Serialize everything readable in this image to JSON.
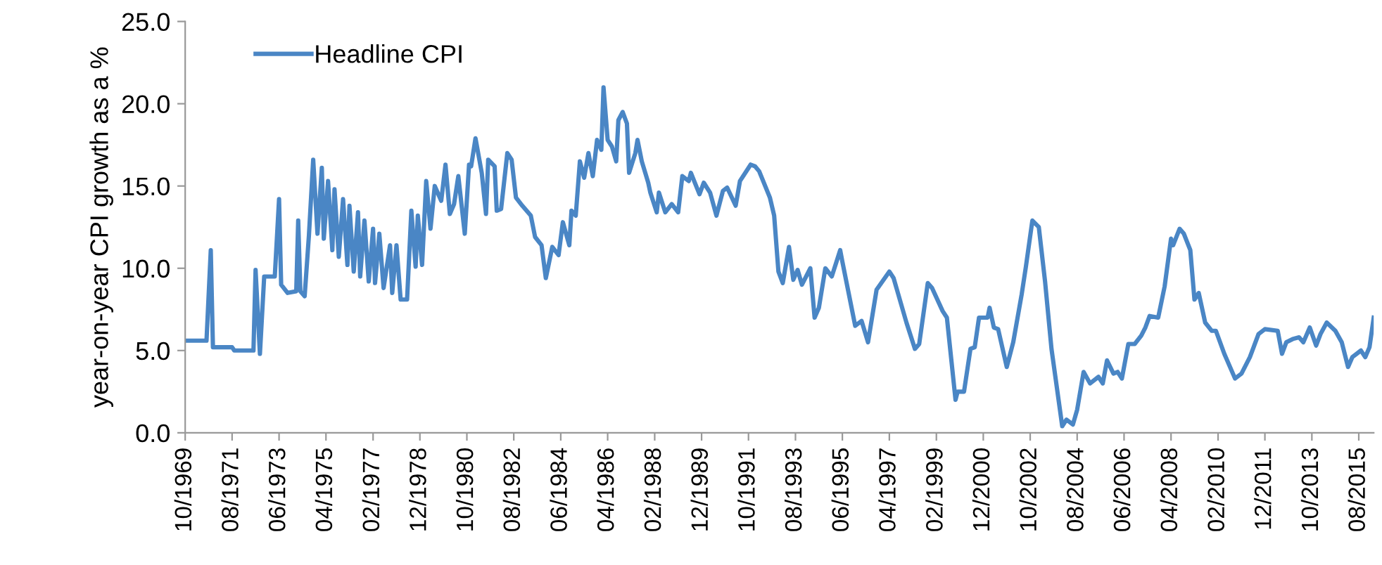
{
  "chart_data": {
    "type": "line",
    "ylabel": "year-on-year CPI growth as a %",
    "xlim": [
      "1969-10",
      "2016-03"
    ],
    "xticks": [
      {
        "value": "1969-10",
        "label": "10/1969"
      },
      {
        "value": "1971-08",
        "label": "08/1971"
      },
      {
        "value": "1973-06",
        "label": "06/1973"
      },
      {
        "value": "1975-04",
        "label": "04/1975"
      },
      {
        "value": "1977-02",
        "label": "02/1977"
      },
      {
        "value": "1978-12",
        "label": "12/1978"
      },
      {
        "value": "1980-10",
        "label": "10/1980"
      },
      {
        "value": "1982-08",
        "label": "08/1982"
      },
      {
        "value": "1984-06",
        "label": "06/1984"
      },
      {
        "value": "1986-04",
        "label": "04/1986"
      },
      {
        "value": "1988-02",
        "label": "02/1988"
      },
      {
        "value": "1989-12",
        "label": "12/1989"
      },
      {
        "value": "1991-10",
        "label": "10/1991"
      },
      {
        "value": "1993-08",
        "label": "08/1993"
      },
      {
        "value": "1995-06",
        "label": "06/1995"
      },
      {
        "value": "1997-04",
        "label": "04/1997"
      },
      {
        "value": "1999-02",
        "label": "02/1999"
      },
      {
        "value": "2000-12",
        "label": "12/2000"
      },
      {
        "value": "2002-10",
        "label": "10/2002"
      },
      {
        "value": "2004-08",
        "label": "08/2004"
      },
      {
        "value": "2006-06",
        "label": "06/2006"
      },
      {
        "value": "2008-04",
        "label": "04/2008"
      },
      {
        "value": "2010-02",
        "label": "02/2010"
      },
      {
        "value": "2011-12",
        "label": "12/2011"
      },
      {
        "value": "2013-10",
        "label": "10/2013"
      },
      {
        "value": "2015-08",
        "label": "08/2015"
      }
    ],
    "ylim": [
      0,
      25
    ],
    "yticks": [
      {
        "value": 0,
        "label": "0.0"
      },
      {
        "value": 5,
        "label": "5.0"
      },
      {
        "value": 10,
        "label": "10.0"
      },
      {
        "value": 15,
        "label": "15.0"
      },
      {
        "value": 20,
        "label": "20.0"
      },
      {
        "value": 25,
        "label": "25.0"
      }
    ],
    "grid": false,
    "legend": "top left",
    "marker": "none",
    "line_style": "solid",
    "series": [
      {
        "name": "Headline CPI",
        "color": "#4a86c5",
        "x": [
          "1969-10",
          "1970-08",
          "1970-10",
          "1970-11",
          "1971-08",
          "1971-09",
          "1972-06",
          "1972-07",
          "1972-09",
          "1972-11",
          "1973-04",
          "1973-06",
          "1973-07",
          "1973-10",
          "1974-02",
          "1974-03",
          "1974-04",
          "1974-06",
          "1974-08",
          "1974-10",
          "1974-12",
          "1975-02",
          "1975-03",
          "1975-05",
          "1975-07",
          "1975-08",
          "1975-10",
          "1975-12",
          "1976-02",
          "1976-03",
          "1976-05",
          "1976-07",
          "1976-08",
          "1976-10",
          "1976-12",
          "1977-02",
          "1977-03",
          "1977-05",
          "1977-07",
          "1977-10",
          "1977-11",
          "1978-01",
          "1978-03",
          "1978-06",
          "1978-08",
          "1978-10",
          "1978-11",
          "1979-01",
          "1979-03",
          "1979-05",
          "1979-07",
          "1979-10",
          "1979-12",
          "1980-02",
          "1980-04",
          "1980-06",
          "1980-09",
          "1980-11",
          "1980-12",
          "1981-02",
          "1981-05",
          "1981-07",
          "1981-08",
          "1981-11",
          "1981-12",
          "1982-02",
          "1982-05",
          "1982-07",
          "1982-09",
          "1982-12",
          "1983-04",
          "1983-06",
          "1983-09",
          "1983-11",
          "1984-02",
          "1984-05",
          "1984-07",
          "1984-10",
          "1984-11",
          "1985-01",
          "1985-03",
          "1985-05",
          "1985-07",
          "1985-09",
          "1985-11",
          "1986-01",
          "1986-02",
          "1986-04",
          "1986-06",
          "1986-08",
          "1986-09",
          "1986-11",
          "1987-01",
          "1987-02",
          "1987-05",
          "1987-06",
          "1987-08",
          "1987-11",
          "1987-12",
          "1988-03",
          "1988-04",
          "1988-07",
          "1988-10",
          "1989-01",
          "1989-03",
          "1989-06",
          "1989-07",
          "1989-11",
          "1990-01",
          "1990-04",
          "1990-07",
          "1990-10",
          "1990-12",
          "1991-04",
          "1991-06",
          "1991-11",
          "1992-01",
          "1992-03",
          "1992-08",
          "1992-10",
          "1992-12",
          "1993-02",
          "1993-05",
          "1993-07",
          "1993-09",
          "1993-11",
          "1994-03",
          "1994-05",
          "1994-07",
          "1994-10",
          "1995-01",
          "1995-05",
          "1995-06",
          "1995-12",
          "1996-03",
          "1996-06",
          "1996-10",
          "1997-04",
          "1997-06",
          "1997-12",
          "1998-04",
          "1998-06",
          "1998-10",
          "1998-12",
          "1999-05",
          "1999-07",
          "1999-11",
          "1999-12",
          "2000-03",
          "2000-06",
          "2000-08",
          "2000-10",
          "2001-02",
          "2001-03",
          "2001-05",
          "2001-07",
          "2001-11",
          "2002-02",
          "2002-06",
          "2002-08",
          "2002-11",
          "2003-02",
          "2003-05",
          "2003-08",
          "2004-01",
          "2004-03",
          "2004-06",
          "2004-08",
          "2004-11",
          "2005-02",
          "2005-06",
          "2005-08",
          "2005-10",
          "2006-01",
          "2006-03",
          "2006-05",
          "2006-08",
          "2006-11",
          "2007-02",
          "2007-04",
          "2007-06",
          "2007-10",
          "2008-01",
          "2008-04",
          "2008-05",
          "2008-08",
          "2008-10",
          "2009-01",
          "2009-03",
          "2009-05",
          "2009-08",
          "2009-11",
          "2010-01",
          "2010-05",
          "2010-10",
          "2011-01",
          "2011-05",
          "2011-09",
          "2011-12",
          "2012-06",
          "2012-08",
          "2012-10",
          "2013-01",
          "2013-04",
          "2013-06",
          "2013-09",
          "2013-12",
          "2014-02",
          "2014-05",
          "2014-09",
          "2014-12",
          "2015-03",
          "2015-05",
          "2015-09",
          "2015-11",
          "2016-01",
          "2016-03"
        ],
        "values": [
          5.6,
          5.6,
          11.1,
          5.2,
          5.2,
          5.0,
          5.0,
          9.9,
          4.8,
          9.5,
          9.5,
          14.2,
          9.0,
          8.5,
          8.6,
          12.9,
          8.6,
          8.3,
          12.0,
          16.6,
          12.1,
          16.1,
          11.8,
          15.3,
          11.1,
          14.8,
          10.7,
          14.2,
          10.2,
          13.8,
          9.8,
          13.4,
          9.5,
          12.9,
          9.2,
          12.4,
          9.1,
          12.1,
          8.8,
          11.4,
          8.5,
          11.4,
          8.1,
          8.1,
          13.5,
          10.1,
          13.2,
          10.2,
          15.3,
          12.4,
          15.0,
          14.1,
          16.3,
          13.3,
          13.9,
          15.6,
          12.1,
          16.3,
          16.2,
          17.9,
          15.8,
          13.3,
          16.6,
          16.2,
          13.5,
          13.6,
          17.0,
          16.6,
          14.3,
          13.8,
          13.2,
          11.9,
          11.4,
          9.4,
          11.3,
          10.8,
          12.8,
          11.4,
          13.5,
          13.2,
          16.5,
          15.5,
          17.0,
          15.6,
          17.8,
          17.2,
          21.0,
          17.8,
          17.4,
          16.5,
          19.0,
          19.5,
          18.8,
          15.8,
          17.0,
          17.8,
          16.5,
          15.2,
          14.6,
          13.4,
          14.6,
          13.4,
          13.9,
          13.4,
          15.6,
          15.3,
          15.8,
          14.5,
          15.2,
          14.6,
          13.2,
          14.7,
          14.9,
          13.8,
          15.3,
          16.3,
          16.2,
          15.9,
          14.3,
          13.2,
          9.8,
          9.1,
          11.3,
          9.3,
          9.9,
          9.0,
          10.0,
          7.0,
          7.6,
          10.0,
          9.5,
          11.1,
          10.4,
          6.5,
          6.8,
          5.5,
          8.7,
          9.8,
          9.4,
          6.7,
          5.1,
          5.4,
          9.1,
          8.8,
          7.4,
          7.0,
          2.0,
          2.5,
          2.5,
          5.1,
          5.2,
          7.0,
          7.0,
          7.6,
          6.4,
          6.3,
          4.0,
          5.5,
          8.4,
          10.1,
          12.9,
          12.5,
          9.2,
          5.1,
          0.4,
          0.8,
          0.5,
          1.4,
          3.7,
          3.0,
          3.4,
          3.0,
          4.4,
          3.6,
          3.7,
          3.3,
          5.4,
          5.4,
          5.9,
          6.4,
          7.1,
          7.0,
          8.9,
          11.8,
          11.4,
          12.4,
          12.1,
          11.1,
          8.1,
          8.5,
          6.7,
          6.2,
          6.2,
          4.8,
          3.3,
          3.6,
          4.6,
          6.0,
          6.3,
          6.2,
          4.8,
          5.5,
          5.7,
          5.8,
          5.5,
          6.4,
          5.3,
          6.0,
          6.7,
          6.2,
          5.5,
          4.0,
          4.6,
          5.0,
          4.6,
          5.2,
          7.0
        ]
      }
    ]
  }
}
